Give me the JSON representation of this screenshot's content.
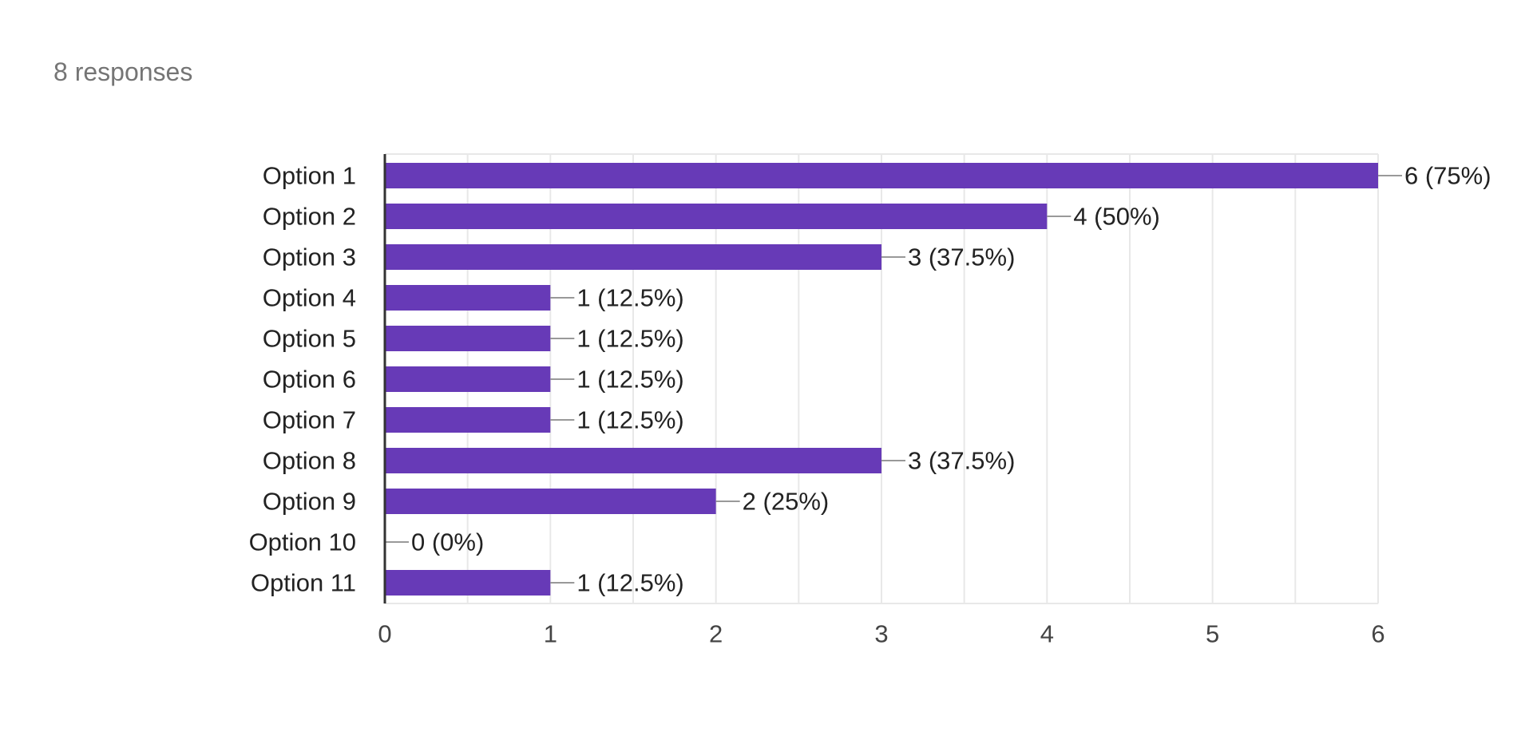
{
  "summary": {
    "responses_label": "8 responses"
  },
  "colors": {
    "bar": "#673ab7",
    "grid": "#e8e8e8",
    "axis": "#333333",
    "connector": "#999999",
    "text": "#222222",
    "tick_text": "#444444",
    "muted_text": "#757575"
  },
  "chart_data": {
    "type": "bar",
    "orientation": "horizontal",
    "categories": [
      "Option 1",
      "Option 2",
      "Option 3",
      "Option 4",
      "Option 5",
      "Option 6",
      "Option 7",
      "Option 8",
      "Option 9",
      "Option 10",
      "Option 11"
    ],
    "values": [
      6,
      4,
      3,
      1,
      1,
      1,
      1,
      3,
      2,
      0,
      1
    ],
    "data_labels": [
      "6 (75%)",
      "4 (50%)",
      "3 (37.5%)",
      "1 (12.5%)",
      "1 (12.5%)",
      "1 (12.5%)",
      "1 (12.5%)",
      "3 (37.5%)",
      "2 (25%)",
      "0 (0%)",
      "1 (12.5%)"
    ],
    "xlim": [
      0,
      6
    ],
    "xticks": [
      0,
      1,
      2,
      3,
      4,
      5,
      6
    ],
    "grid": true,
    "title": "",
    "xlabel": "",
    "ylabel": ""
  }
}
